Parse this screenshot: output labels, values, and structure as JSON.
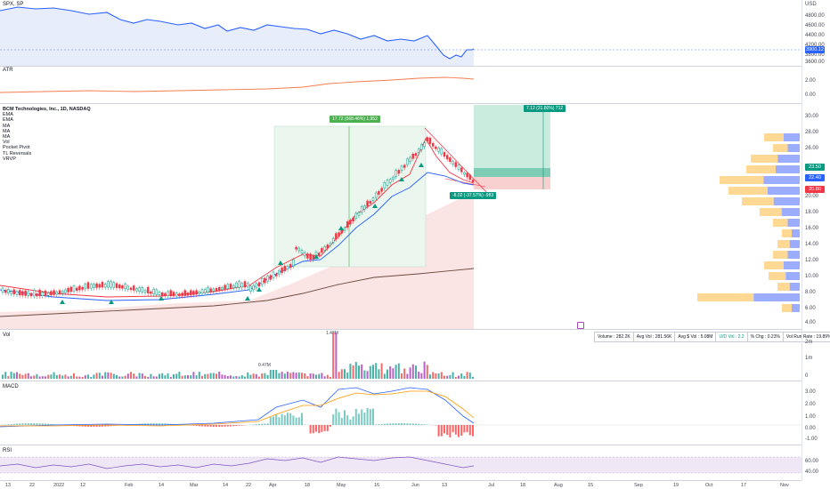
{
  "panes": {
    "spx": {
      "label": "SPX, SP",
      "currency": "USD",
      "ticks": [
        "4800.00",
        "4600.00",
        "4400.00",
        "4200.00",
        "4000.00",
        "3800.00",
        "3600.00"
      ],
      "price_badge": "3900.12"
    },
    "atr": {
      "label": "ATR",
      "ticks": [
        "2.00",
        "0.00"
      ]
    },
    "main": {
      "title": "BCM Technologies, Inc., 1D, NASDAQ",
      "indicators": [
        "EMA",
        "EMA",
        "MA",
        "MA",
        "MA",
        "Vol",
        "Pocket Pivot",
        "TL Reversals",
        "VRVP"
      ],
      "ticks": [
        "30.00",
        "28.00",
        "26.00",
        "24.00",
        "22.00",
        "20.00",
        "18.00",
        "16.00",
        "14.00",
        "12.00",
        "10.00",
        "8.00",
        "6.00",
        "4.00"
      ],
      "badges": [
        {
          "text": "23.50",
          "color": "#089981"
        },
        {
          "text": "22.40",
          "color": "#2962ff"
        },
        {
          "text": "20.80",
          "color": "#f23645"
        }
      ],
      "measure_up": "17.72 (568.46%) 1,952",
      "measure_target": "7.12 (31.80%) 712",
      "measure_down": "-8.02 (-37.57%) -983"
    },
    "vol": {
      "label": "Vol",
      "ticks": [
        "2m",
        "1m",
        "0"
      ],
      "peak_label": "1.48M",
      "mid_label": "0.47M"
    },
    "macd": {
      "label": "MACD",
      "ticks": [
        "3.00",
        "2.00",
        "1.00",
        "0.00",
        "-1.00"
      ]
    },
    "rsi": {
      "label": "RSI",
      "ticks": [
        "60.00",
        "40.00"
      ]
    }
  },
  "stats_bar": [
    "Volume : 282.2K",
    "Avg Vol : 281.56K",
    "Avg $ Vol : 5.08M",
    "U/D Vol : 2.2",
    "% Chg : 0.23%",
    "Vol Run Rate : 19.89%"
  ],
  "x_axis": [
    "13",
    "22",
    "2022",
    "12",
    "Feb",
    "14",
    "Mar",
    "14",
    "22",
    "Apr",
    "18",
    "May",
    "16",
    "Jun",
    "13",
    "Jul",
    "18",
    "Aug",
    "15",
    "Sep",
    "19",
    "Oct",
    "17",
    "Nov"
  ],
  "colors": {
    "up": "#089981",
    "down": "#f23645",
    "ema_fast": "#f23645",
    "ema_slow": "#2962ff",
    "ma_long": "#6d4c41"
  }
}
